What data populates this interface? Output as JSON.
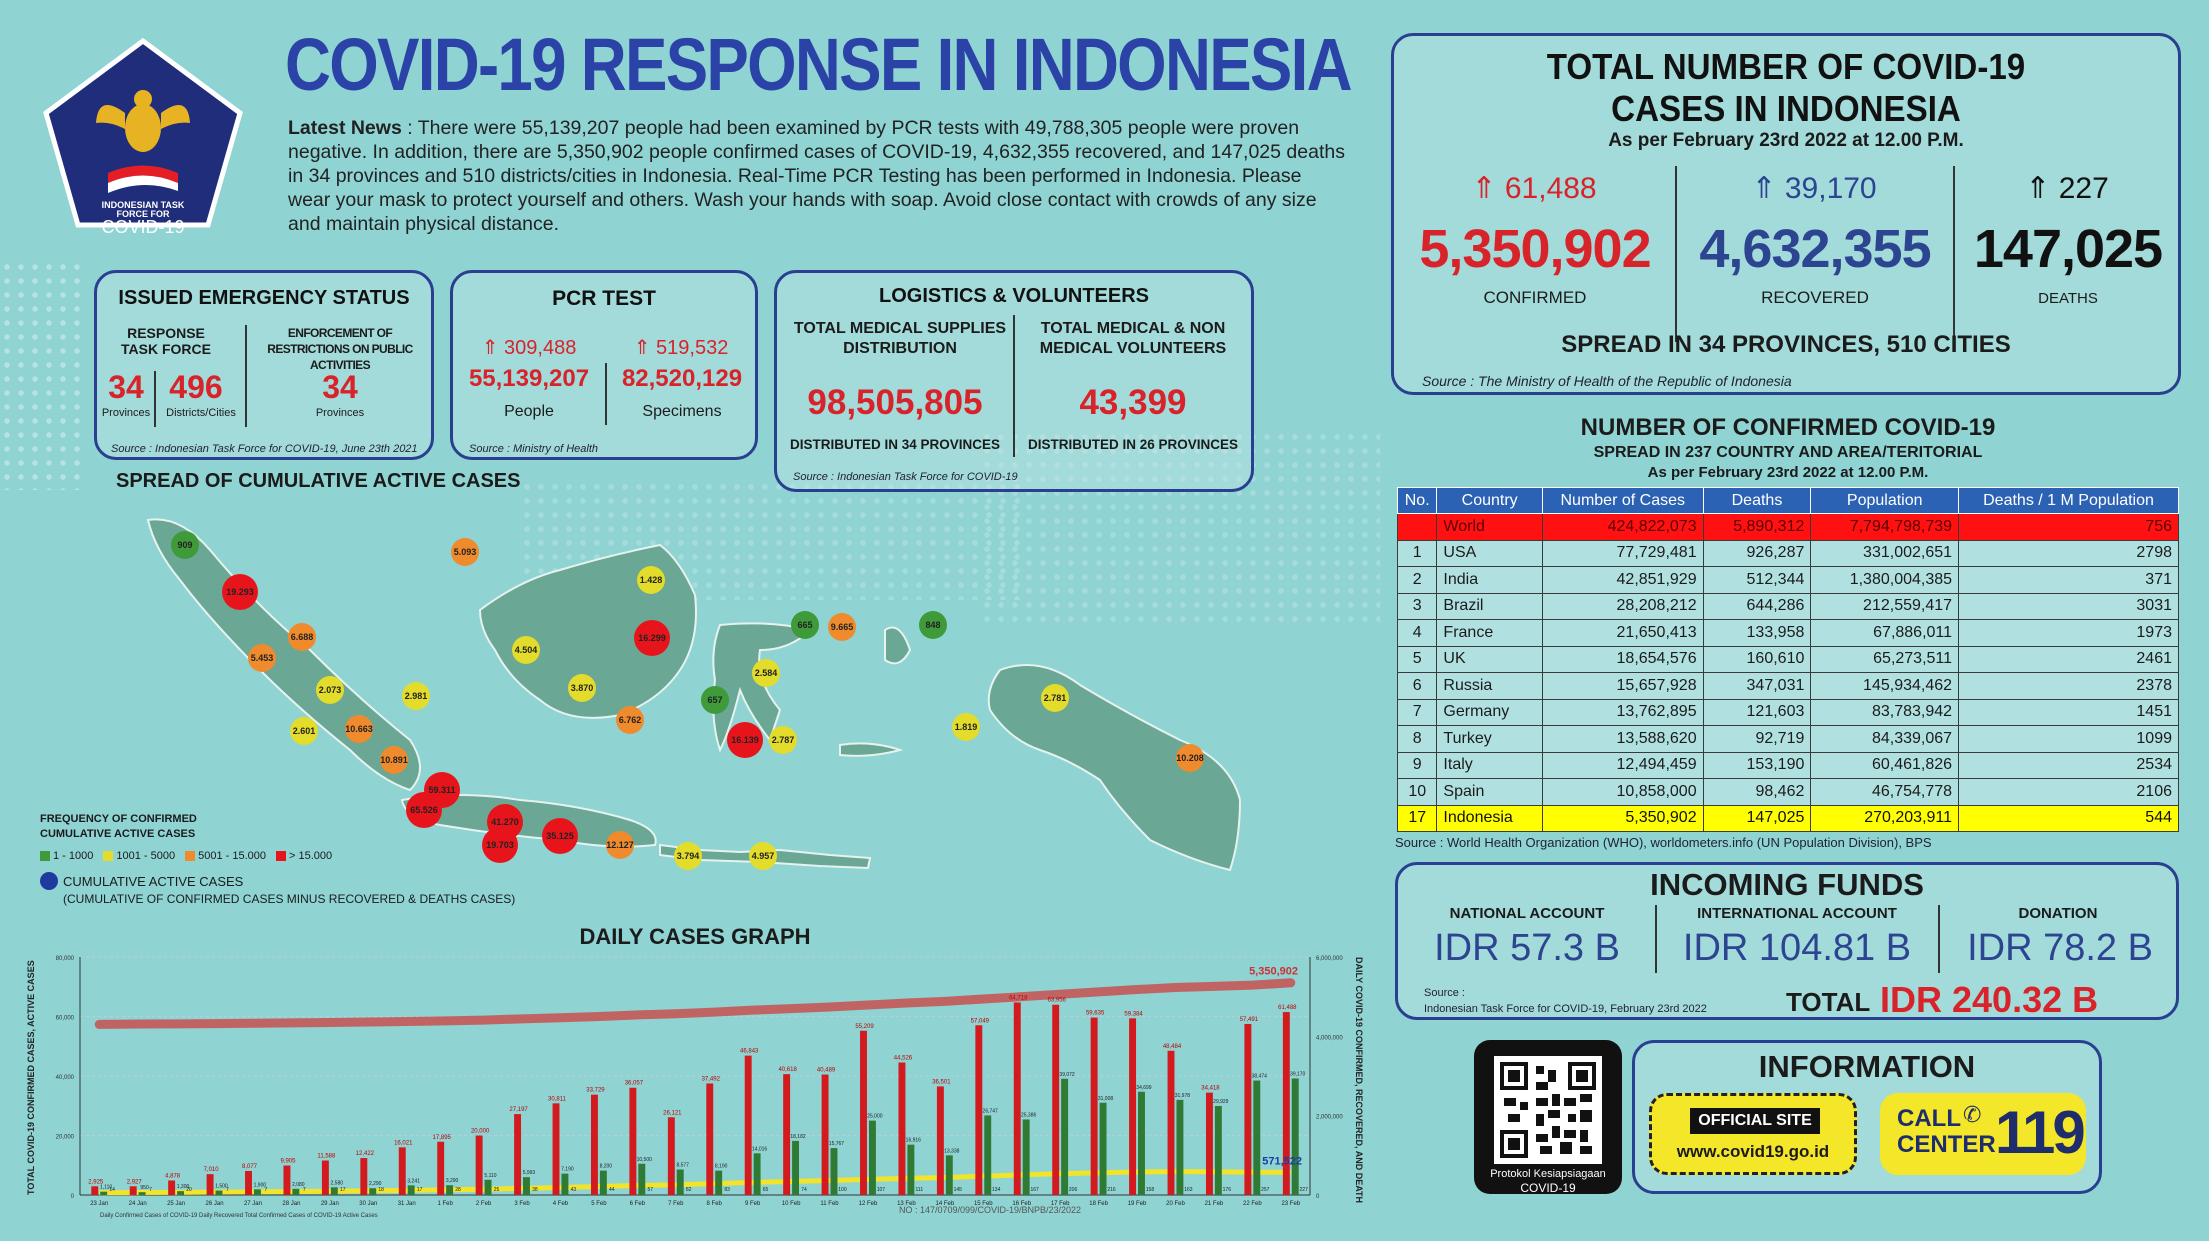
{
  "header": {
    "title": "COVID-19 RESPONSE IN INDONESIA",
    "logo_line1": "INDONESIAN TASK",
    "logo_line2": "FORCE FOR",
    "logo_line3": "COVID-19",
    "news_label": "Latest News",
    "news_text": " : There were 55,139,207 people had been examined by PCR tests with 49,788,305 people were proven negative. In addition, there are 5,350,902 people confirmed cases of COVID-19, 4,632,355 recovered, and 147,025 deaths in 34 provinces and 510 districts/cities in Indonesia. Real-Time PCR Testing has been performed in Indonesia. Please wear your mask to protect yourself and others. Wash your hands with soap. Avoid close contact with crowds of any size and maintain physical distance."
  },
  "emergency": {
    "title": "ISSUED EMERGENCY STATUS",
    "col1_label": "RESPONSE TASK FORCE",
    "col2_label": "ENFORCEMENT OF RESTRICTIONS ON PUBLIC ACTIVITIES",
    "provinces": "34",
    "provinces_label": "Provinces",
    "districts": "496",
    "districts_label": "Districts/Cities",
    "enf_provinces": "34",
    "enf_label": "Provinces",
    "source": "Source : Indonesian Task Force for COVID-19, June 23th 2021"
  },
  "pcr": {
    "title": "PCR TEST",
    "people_inc": "309,488",
    "specimens_inc": "519,532",
    "people": "55,139,207",
    "specimens": "82,520,129",
    "people_label": "People",
    "specimens_label": "Specimens",
    "source": "Source : Ministry of Health"
  },
  "logistics": {
    "title": "LOGISTICS & VOLUNTEERS",
    "col1_label": "TOTAL MEDICAL SUPPLIES DISTRIBUTION",
    "col2_label": "TOTAL MEDICAL & NON MEDICAL VOLUNTEERS",
    "supplies": "98,505,805",
    "volunteers": "43,399",
    "col1_sub": "DISTRIBUTED IN 34 PROVINCES",
    "col2_sub": "DISTRIBUTED IN 26 PROVINCES",
    "source": "Source : Indonesian Task Force for COVID-19"
  },
  "totals": {
    "title1": "TOTAL NUMBER OF COVID-19",
    "title2": "CASES IN INDONESIA",
    "asof": "As per February 23rd 2022 at 12.00 P.M.",
    "confirmed_inc": "61,488",
    "recovered_inc": "39,170",
    "deaths_inc": "227",
    "confirmed": "5,350,902",
    "recovered": "4,632,355",
    "deaths": "147,025",
    "confirmed_label": "CONFIRMED",
    "recovered_label": "RECOVERED",
    "deaths_label": "DEATHS",
    "spread": "SPREAD IN 34 PROVINCES, 510 CITIES",
    "source": "Source : The Ministry of Health of the Republic of Indonesia",
    "colors": {
      "confirmed": "#d8232a",
      "recovered": "#2d4591",
      "deaths": "#111111"
    }
  },
  "world": {
    "title": "NUMBER OF CONFIRMED COVID-19",
    "subtitle": "SPREAD IN 237 COUNTRY AND AREA/TERITORIAL",
    "asof": "As per February 23rd 2022 at 12.00 P.M.",
    "headers": [
      "No.",
      "Country",
      "Number of Cases",
      "Deaths",
      "Population",
      "Deaths / 1 M Population"
    ],
    "rows": [
      [
        "",
        "World",
        "424,822,073",
        "5,890,312",
        "7,794,798,739",
        "756"
      ],
      [
        "1",
        "USA",
        "77,729,481",
        "926,287",
        "331,002,651",
        "2798"
      ],
      [
        "2",
        "India",
        "42,851,929",
        "512,344",
        "1,380,004,385",
        "371"
      ],
      [
        "3",
        "Brazil",
        "28,208,212",
        "644,286",
        "212,559,417",
        "3031"
      ],
      [
        "4",
        "France",
        "21,650,413",
        "133,958",
        "67,886,011",
        "1973"
      ],
      [
        "5",
        "UK",
        "18,654,576",
        "160,610",
        "65,273,511",
        "2461"
      ],
      [
        "6",
        "Russia",
        "15,657,928",
        "347,031",
        "145,934,462",
        "2378"
      ],
      [
        "7",
        "Germany",
        "13,762,895",
        "121,603",
        "83,783,942",
        "1451"
      ],
      [
        "8",
        "Turkey",
        "13,588,620",
        "92,719",
        "84,339,067",
        "1099"
      ],
      [
        "9",
        "Italy",
        "12,494,459",
        "153,190",
        "60,461,826",
        "2534"
      ],
      [
        "10",
        "Spain",
        "10,858,000",
        "98,462",
        "46,754,778",
        "2106"
      ],
      [
        "17",
        "Indonesia",
        "5,350,902",
        "147,025",
        "270,203,911",
        "544"
      ]
    ],
    "source": "Source : World Health Organization (WHO), worldometers.info (UN Population Division), BPS"
  },
  "funds": {
    "title": "INCOMING FUNDS",
    "national_label": "NATIONAL ACCOUNT",
    "international_label": "INTERNATIONAL ACCOUNT",
    "donation_label": "DONATION",
    "national": "IDR 57.3 B",
    "international": "IDR 104.81 B",
    "donation": "IDR 78.2 B",
    "total_label": "TOTAL",
    "total": "IDR 240.32 B",
    "source_label": "Source :",
    "source": "Indonesian Task Force for COVID-19, February 23rd 2022"
  },
  "info": {
    "title": "INFORMATION",
    "official_label": "OFFICIAL SITE",
    "site": "www.covid19.go.id",
    "call_label1": "CALL",
    "call_label2": "CENTER",
    "call_number": "119",
    "qr_line1": "Protokol Kesiapsiagaan",
    "qr_line2": "COVID-19"
  },
  "map": {
    "title": "SPREAD OF CUMULATIVE ACTIVE CASES",
    "legend_title1": "FREQUENCY OF CONFIRMED",
    "legend_title2": "CUMULATIVE ACTIVE CASES",
    "legend": [
      {
        "label": "1 - 1000",
        "color": "#3f9a3a"
      },
      {
        "label": "1001 - 5000",
        "color": "#e3dc2a"
      },
      {
        "label": "5001 - 15.000",
        "color": "#ef8b2c"
      },
      {
        "label": "> 15.000",
        "color": "#e8141c"
      }
    ],
    "legend_note1": "CUMULATIVE ACTIVE CASES",
    "legend_note2": "(CUMULATIVE OF CONFIRMED CASES MINUS RECOVERED & DEATHS CASES)",
    "bubbles": [
      {
        "v": "909",
        "c": "#3f9a3a"
      },
      {
        "v": "19.293",
        "c": "#e8141c"
      },
      {
        "v": "5.093",
        "c": "#ef8b2c"
      },
      {
        "v": "6.688",
        "c": "#ef8b2c"
      },
      {
        "v": "5.453",
        "c": "#ef8b2c"
      },
      {
        "v": "2.073",
        "c": "#e3dc2a"
      },
      {
        "v": "2.981",
        "c": "#e3dc2a"
      },
      {
        "v": "10.663",
        "c": "#ef8b2c"
      },
      {
        "v": "2.601",
        "c": "#e3dc2a"
      },
      {
        "v": "10.891",
        "c": "#ef8b2c"
      },
      {
        "v": "59.311",
        "c": "#e8141c"
      },
      {
        "v": "65.526",
        "c": "#e8141c"
      },
      {
        "v": "41.270",
        "c": "#e8141c"
      },
      {
        "v": "19.703",
        "c": "#e8141c"
      },
      {
        "v": "35.125",
        "c": "#e8141c"
      },
      {
        "v": "12.127",
        "c": "#ef8b2c"
      },
      {
        "v": "3.794",
        "c": "#e3dc2a"
      },
      {
        "v": "4.957",
        "c": "#e3dc2a"
      },
      {
        "v": "1.428",
        "c": "#e3dc2a"
      },
      {
        "v": "4.504",
        "c": "#e3dc2a"
      },
      {
        "v": "16.299",
        "c": "#e8141c"
      },
      {
        "v": "3.870",
        "c": "#e3dc2a"
      },
      {
        "v": "6.762",
        "c": "#ef8b2c"
      },
      {
        "v": "665",
        "c": "#3f9a3a"
      },
      {
        "v": "9.665",
        "c": "#ef8b2c"
      },
      {
        "v": "848",
        "c": "#3f9a3a"
      },
      {
        "v": "2.584",
        "c": "#e3dc2a"
      },
      {
        "v": "657",
        "c": "#3f9a3a"
      },
      {
        "v": "16.139",
        "c": "#e8141c"
      },
      {
        "v": "2.787",
        "c": "#e3dc2a"
      },
      {
        "v": "2.781",
        "c": "#e3dc2a"
      },
      {
        "v": "1.819",
        "c": "#e3dc2a"
      },
      {
        "v": "10.208",
        "c": "#ef8b2c"
      }
    ]
  },
  "chart_data": {
    "type": "bar",
    "title": "DAILY CASES GRAPH",
    "ylabel": "TOTAL COVID-19 CONFIRMED CASES, ACTIVE CASES",
    "ylabel_right": "DAILY COVID-19 CONFIRMED, RECOVERED, AND DEATH",
    "ylim": [
      0,
      80000
    ],
    "ylim_right": [
      0,
      6000000
    ],
    "yticks": [
      "0",
      "20,000",
      "40,000",
      "60,000",
      "80,000"
    ],
    "yticks_right": [
      "0",
      "2,000,000",
      "4,000,000",
      "6,000,000"
    ],
    "categories": [
      "23 Jan",
      "24 Jan",
      "25 Jan",
      "26 Jan",
      "27 Jan",
      "28 Jan",
      "29 Jan",
      "30 Jan",
      "31 Jan",
      "1 Feb",
      "2 Feb",
      "3 Feb",
      "4 Feb",
      "5 Feb",
      "6 Feb",
      "7 Feb",
      "8 Feb",
      "9 Feb",
      "10 Feb",
      "11 Feb",
      "12 Feb",
      "13 Feb",
      "14 Feb",
      "15 Feb",
      "16 Feb",
      "17 Feb",
      "18 Feb",
      "19 Feb",
      "20 Feb",
      "21 Feb",
      "22 Feb",
      "23 Feb"
    ],
    "series": [
      {
        "values": [
          2925,
          2927,
          4878,
          7010,
          8077,
          9905,
          11588,
          12422,
          16021,
          17895,
          20000,
          27197,
          30811,
          33729,
          36057,
          26121,
          37492,
          46843,
          40618,
          40489,
          55209,
          44526,
          36501,
          57049,
          64718,
          63956,
          59635,
          59384,
          48484,
          34418,
          57491,
          61488
        ]
      },
      {
        "values": [
          1110,
          950,
          1300,
          1500,
          1900,
          2080,
          2580,
          2290,
          3241,
          3290,
          5110,
          5993,
          7190,
          8200,
          10500,
          8577,
          8190,
          14016,
          18182,
          15767,
          25000,
          16916,
          13338,
          26747,
          25386,
          39072,
          31008,
          34699,
          31978,
          29929,
          38474,
          39170
        ]
      },
      {
        "values": [
          14,
          7,
          20,
          7,
          7,
          7,
          17,
          18,
          17,
          28,
          25,
          38,
          43,
          44,
          57,
          82,
          83,
          65,
          74,
          100,
          107,
          111,
          145,
          134,
          167,
          206,
          216,
          158,
          163,
          176,
          257,
          227
        ]
      },
      {
        "values": [
          4300000,
          4310000,
          4315000,
          4320000,
          4330000,
          4340000,
          4350000,
          4360000,
          4375000,
          4390000,
          4410000,
          4440000,
          4470000,
          4500000,
          4540000,
          4570000,
          4610000,
          4660000,
          4700000,
          4740000,
          4790000,
          4840000,
          4880000,
          4940000,
          5000000,
          5060000,
          5120000,
          5180000,
          5230000,
          5260000,
          5290000,
          5350902
        ]
      },
      {
        "values": [
          59000,
          62000,
          66000,
          72000,
          80000,
          87000,
          96000,
          106000,
          118000,
          131000,
          146000,
          167000,
          190000,
          215000,
          240000,
          258000,
          286000,
          318000,
          340000,
          364000,
          393000,
          420000,
          442000,
          472000,
          510000,
          535000,
          560000,
          580000,
          590000,
          585000,
          575000,
          571522
        ]
      }
    ],
    "end_labels": {
      "confirmed": "5,350,902",
      "active": "571,522"
    },
    "legend_text": "Daily Confirmed Cases of COVID-19    Daily Recovered    Total Confirmed Cases of COVID-19    Active Cases",
    "colors": {
      "confirmed": "#d21a1f",
      "recovered": "#2f7a34",
      "deaths": "#e6e01f",
      "total": "#c9504f",
      "active": "#1c3da8"
    }
  },
  "footer_code": "NO : 147/0709/099/COVID-19/BNPB/23/2022"
}
